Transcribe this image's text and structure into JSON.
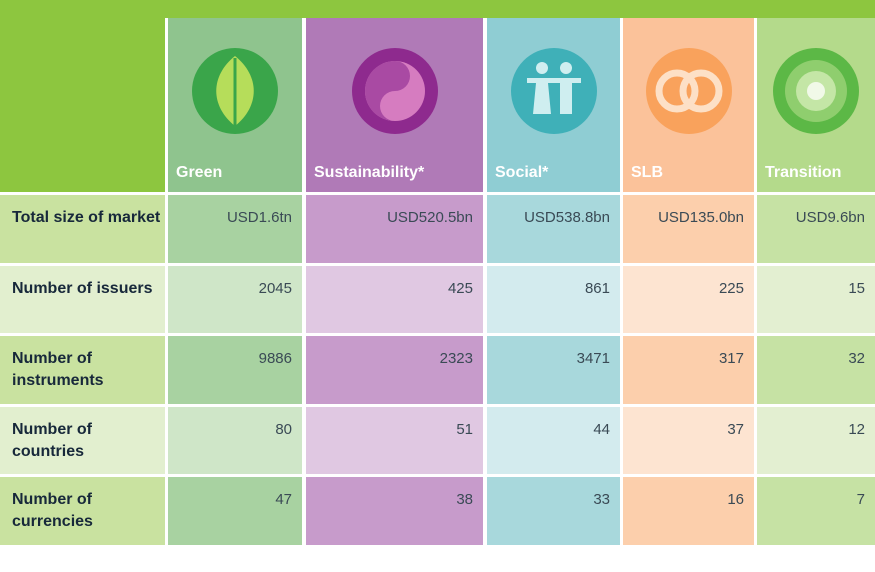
{
  "table": {
    "columns": [
      "Green",
      "Sustainability*",
      "Social*",
      "SLB",
      "Transition"
    ],
    "rows": [
      {
        "label": "Total size of market",
        "values": [
          "USD1.6tn",
          "USD520.5bn",
          "USD538.8bn",
          "USD135.0bn",
          "USD9.6bn"
        ]
      },
      {
        "label": "Number of issuers",
        "values": [
          "2045",
          "425",
          "861",
          "225",
          "15"
        ]
      },
      {
        "label": "Number of instruments",
        "values": [
          "9886",
          "2323",
          "3471",
          "317",
          "32"
        ]
      },
      {
        "label": "Number of countries",
        "values": [
          "80",
          "51",
          "44",
          "37",
          "12"
        ]
      },
      {
        "label": "Number of currencies",
        "values": [
          "47",
          "38",
          "33",
          "16",
          "7"
        ]
      }
    ]
  }
}
